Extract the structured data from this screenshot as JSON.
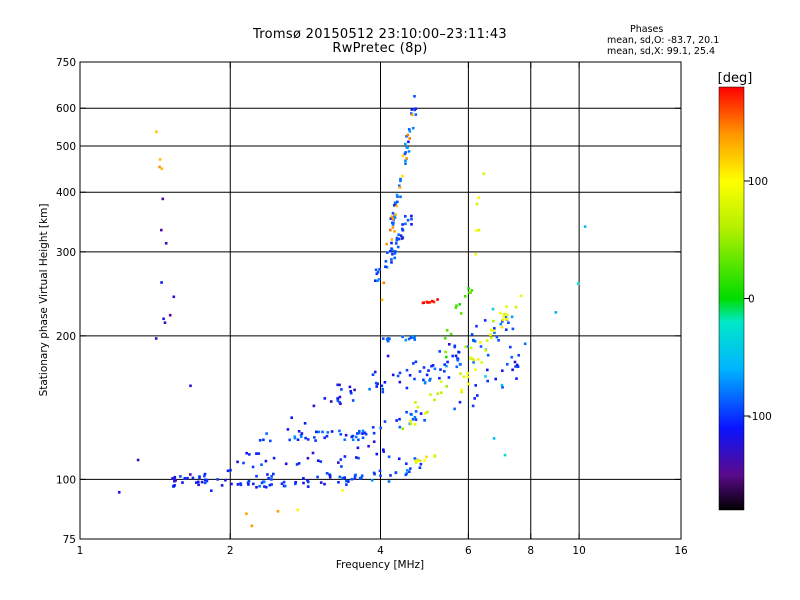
{
  "figure": {
    "title_line1": "Tromsø 20150512 23:10:00–23:11:43",
    "title_line2": "RwPretec (8p)",
    "stats_title": "Phases",
    "stats_o": "mean, sd,O:  -83.7, 20.1",
    "stats_x": "mean, sd,X:  99.1, 25.4"
  },
  "chart_data": {
    "type": "scatter",
    "title": "Tromsø 20150512 23:10:00–23:11:43",
    "subtitle": "RwPretec (8p)",
    "xlabel": "Frequency [MHz]",
    "ylabel": "Stationary phase Virtual Height [km]",
    "x_scale": "log",
    "y_scale": "log",
    "xlim": [
      1,
      16
    ],
    "ylim": [
      75,
      750
    ],
    "x_ticks": [
      1,
      2,
      4,
      6,
      8,
      10,
      16
    ],
    "x_tick_labels": [
      "1",
      "2",
      "4",
      "6",
      "8",
      "10",
      "16"
    ],
    "y_ticks": [
      75,
      100,
      200,
      300,
      400,
      500,
      600,
      750
    ],
    "y_tick_labels": [
      "75",
      "100",
      "200",
      "300",
      "400",
      "500",
      "600",
      "750"
    ],
    "grid_x": [
      2,
      4,
      6,
      8,
      10
    ],
    "grid_y": [
      100,
      200,
      300,
      400,
      500,
      600
    ],
    "colorbar": {
      "label": "[deg]",
      "range": [
        -180,
        180
      ],
      "ticks": [
        100,
        0,
        -100
      ],
      "tick_labels": [
        "100",
        "0",
        "-100"
      ]
    },
    "colorscale_stops": [
      {
        "v": -180,
        "color": "#000000"
      },
      {
        "v": -150,
        "color": "#5a0a8c"
      },
      {
        "v": -110,
        "color": "#0a14ff"
      },
      {
        "v": -60,
        "color": "#00b4ff"
      },
      {
        "v": -20,
        "color": "#00e8c8"
      },
      {
        "v": 0,
        "color": "#00dc00"
      },
      {
        "v": 60,
        "color": "#b4f000"
      },
      {
        "v": 100,
        "color": "#ffff00"
      },
      {
        "v": 140,
        "color": "#ff9600"
      },
      {
        "v": 180,
        "color": "#ff0000"
      }
    ],
    "series": [
      {
        "segments": [
          {
            "f": [
              1.5,
              2.0
            ],
            "h": [
              100,
              98
            ],
            "phase": -105,
            "n": 30,
            "spread": 0.03
          },
          {
            "f": [
              2.0,
              3.6
            ],
            "h": [
              98,
              100
            ],
            "phase": -100,
            "n": 50,
            "spread": 0.03
          },
          {
            "f": [
              3.6,
              4.8
            ],
            "h": [
              100,
              107
            ],
            "phase": -95,
            "n": 22,
            "spread": 0.035
          },
          {
            "f": [
              2.0,
              4.5
            ],
            "h": [
              106,
              112
            ],
            "phase": -105,
            "n": 35,
            "spread": 0.05
          },
          {
            "f": [
              2.3,
              3.8
            ],
            "h": [
              120,
              126
            ],
            "phase": -90,
            "n": 35,
            "spread": 0.03
          },
          {
            "f": [
              2.6,
              4.3
            ],
            "h": [
              130,
              170
            ],
            "phase": -110,
            "n": 28,
            "spread": 0.06
          },
          {
            "f": [
              3.5,
              5.0
            ],
            "h": [
              122,
              140
            ],
            "phase": -95,
            "n": 22,
            "spread": 0.04
          },
          {
            "f": [
              4.0,
              5.8
            ],
            "h": [
              155,
              185
            ],
            "phase": -100,
            "n": 30,
            "spread": 0.05
          },
          {
            "f": [
              4.0,
              4.7
            ],
            "h": [
              196,
              198
            ],
            "phase": -80,
            "n": 14,
            "spread": 0.012
          },
          {
            "f": [
              4.8,
              7.4
            ],
            "h": [
              160,
              215
            ],
            "phase": -90,
            "n": 40,
            "spread": 0.06
          },
          {
            "f": [
              5.5,
              8.0
            ],
            "h": [
              140,
              185
            ],
            "phase": -105,
            "n": 22,
            "spread": 0.06
          },
          {
            "f": [
              3.9,
              4.6
            ],
            "h": [
              260,
              360
            ],
            "phase": -95,
            "n": 40,
            "spread": 0.04
          },
          {
            "f": [
              4.2,
              4.7
            ],
            "h": [
              330,
              620
            ],
            "phase": -85,
            "n": 40,
            "spread": 0.03
          }
        ]
      },
      {
        "segments": [
          {
            "f": [
              4.5,
              5.2
            ],
            "h": [
              108,
              112
            ],
            "phase": 95,
            "n": 10,
            "spread": 0.01
          },
          {
            "f": [
              4.4,
              6.8
            ],
            "h": [
              125,
              205
            ],
            "phase": 75,
            "n": 22,
            "spread": 0.06
          },
          {
            "f": [
              5.6,
              7.6
            ],
            "h": [
              150,
              240
            ],
            "phase": 90,
            "n": 26,
            "spread": 0.06
          },
          {
            "f": [
              4.8,
              5.2
            ],
            "h": [
              234,
              237
            ],
            "phase": 175,
            "n": 8,
            "spread": 0.008
          },
          {
            "f": [
              4.0,
              4.6
            ],
            "h": [
              240,
              560
            ],
            "phase": 135,
            "n": 18,
            "spread": 0.05
          },
          {
            "f": [
              5.3,
              6.1
            ],
            "h": [
              190,
              260
            ],
            "phase": 20,
            "n": 14,
            "spread": 0.05
          },
          {
            "f": [
              6.2,
              6.5
            ],
            "h": [
              300,
              500
            ],
            "phase": 90,
            "n": 6,
            "spread": 0.03
          }
        ]
      },
      {
        "segments": [
          {
            "f": [
              1.43,
              1.43
            ],
            "h": [
              90,
              630
            ],
            "phase": -130,
            "n": 14,
            "spread": 0.4
          },
          {
            "f": [
              1.43,
              1.43
            ],
            "h": [
              430,
              560
            ],
            "phase": 130,
            "n": 4,
            "spread": 0.06
          },
          {
            "f": [
              1.9,
              3.6
            ],
            "h": [
              80,
              95
            ],
            "phase": 120,
            "n": 5,
            "spread": 0.04
          },
          {
            "f": [
              6.0,
              14.5
            ],
            "h": [
              130,
              600
            ],
            "phase": -40,
            "n": 8,
            "spread": 0.3
          }
        ]
      }
    ]
  }
}
